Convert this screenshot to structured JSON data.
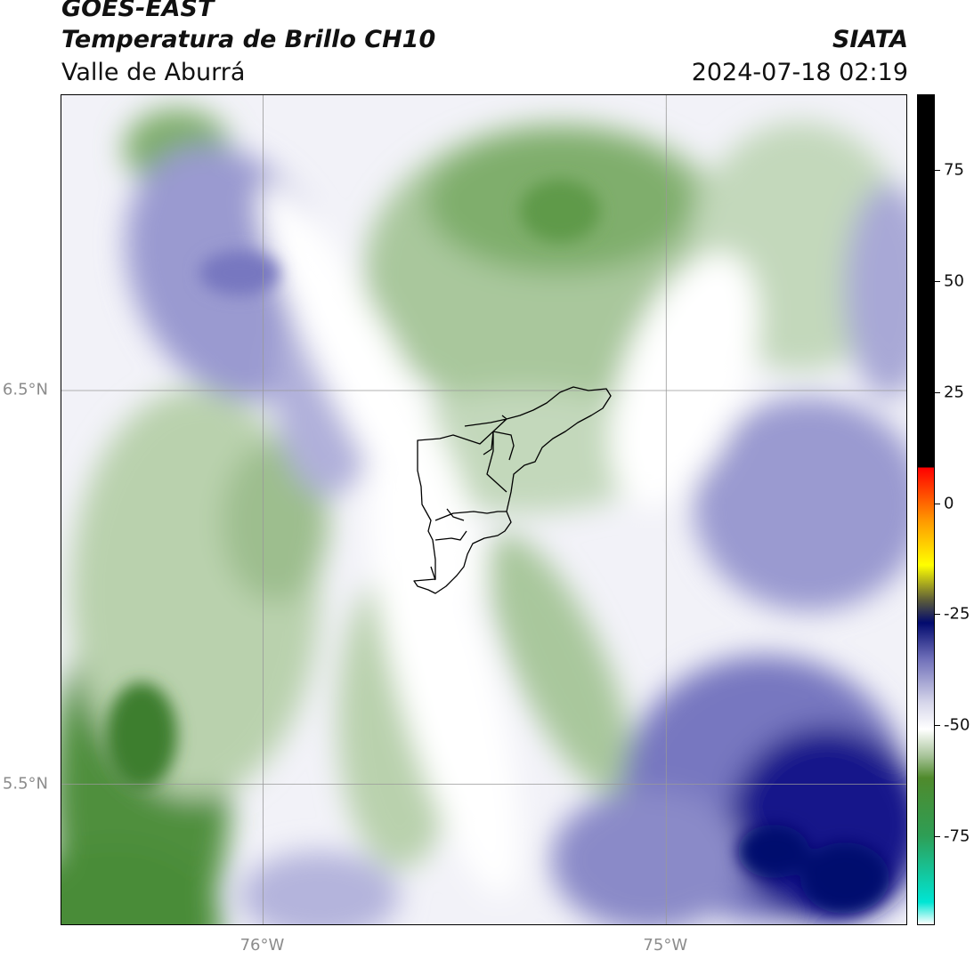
{
  "header": {
    "satellite": "GOES-EAST",
    "product": "Temperatura de Brillo CH10",
    "region": "Valle de Aburrá",
    "organization": "SIATA",
    "datetime": "2024-07-18 02:19"
  },
  "map": {
    "lon_range": [
      -76.5,
      -74.4
    ],
    "lat_range": [
      5.14,
      7.25
    ],
    "gridlines": {
      "lon": [
        {
          "value": -76.0,
          "label": "76°W"
        },
        {
          "value": -75.0,
          "label": "75°W"
        }
      ],
      "lat": [
        {
          "value": 6.5,
          "label": "6.5°N"
        },
        {
          "value": 5.5,
          "label": "5.5°N"
        }
      ]
    },
    "gridline_color": "#999999",
    "boundary_color": "#000000"
  },
  "colorbar": {
    "range": [
      -95,
      92
    ],
    "ticks": [
      75,
      50,
      25,
      0,
      -25,
      -50,
      -75
    ],
    "tick_labels": [
      "75",
      "50",
      "25",
      "0",
      "-25",
      "-50",
      "-75"
    ],
    "stops": [
      {
        "value": -95,
        "color": "#ffffff"
      },
      {
        "value": -90,
        "color": "#00e5d4"
      },
      {
        "value": -75,
        "color": "#2e9e55"
      },
      {
        "value": -62,
        "color": "#4f8a2c"
      },
      {
        "value": -57,
        "color": "#a8c49a"
      },
      {
        "value": -51,
        "color": "#ffffff"
      },
      {
        "value": -45,
        "color": "#d6d6ea"
      },
      {
        "value": -35,
        "color": "#6e6eb8"
      },
      {
        "value": -27,
        "color": "#020a6e"
      },
      {
        "value": -22,
        "color": "#5a5a3a"
      },
      {
        "value": -14,
        "color": "#ffff00"
      },
      {
        "value": -4,
        "color": "#ff9900"
      },
      {
        "value": 8,
        "color": "#ff0000"
      },
      {
        "value": 8.01,
        "color": "#000000"
      },
      {
        "value": 92,
        "color": "#000000"
      }
    ]
  }
}
